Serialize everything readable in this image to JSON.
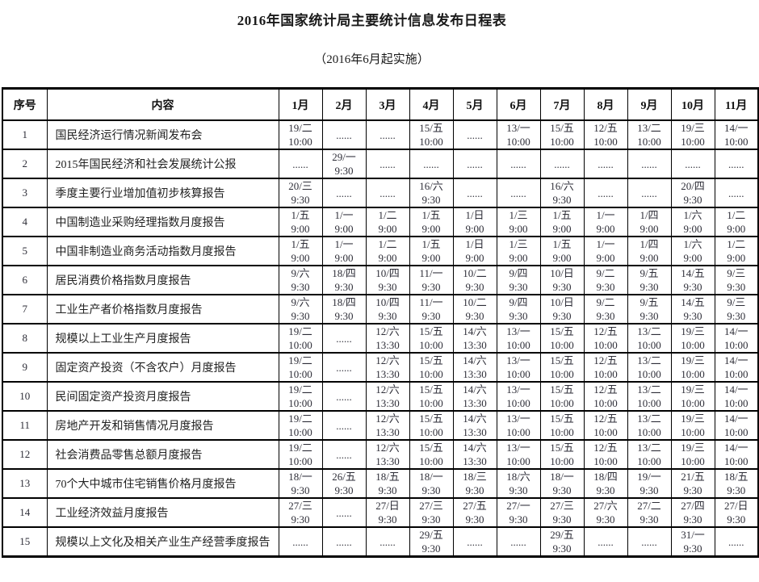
{
  "title": "2016年国家统计局主要统计信息发布日程表",
  "subtitle": "（2016年6月起实施）",
  "colors": {
    "background": "#ffffff",
    "border": "#000000",
    "title_text": "#1a1a1a",
    "cell_text": "#2e2e38"
  },
  "table": {
    "headers": [
      "序号",
      "内容",
      "1月",
      "2月",
      "3月",
      "4月",
      "5月",
      "6月",
      "7月",
      "8月",
      "9月",
      "10月",
      "11月"
    ],
    "rows": [
      {
        "no": "1",
        "content": "国民经济运行情况新闻发布会",
        "cells": [
          [
            "19/二",
            "10:00"
          ],
          [
            "......"
          ],
          [
            "......"
          ],
          [
            "15/五",
            "10:00"
          ],
          [
            "......"
          ],
          [
            "13/一",
            "10:00"
          ],
          [
            "15/五",
            "10:00"
          ],
          [
            "12/五",
            "10:00"
          ],
          [
            "13/二",
            "10:00"
          ],
          [
            "19/三",
            "10:00"
          ],
          [
            "14/一",
            "10:00"
          ]
        ]
      },
      {
        "no": "2",
        "content": "2015年国民经济和社会发展统计公报",
        "cells": [
          [
            "......"
          ],
          [
            "29/一",
            "9:30"
          ],
          [
            "......"
          ],
          [
            "......"
          ],
          [
            "......"
          ],
          [
            "......"
          ],
          [
            "......"
          ],
          [
            "......"
          ],
          [
            "......"
          ],
          [
            "......"
          ],
          [
            "......"
          ]
        ]
      },
      {
        "no": "3",
        "content": "季度主要行业增加值初步核算报告",
        "cells": [
          [
            "20/三",
            "9:30"
          ],
          [
            "......"
          ],
          [
            "......"
          ],
          [
            "16/六",
            "9:30"
          ],
          [
            "......"
          ],
          [
            "......"
          ],
          [
            "16/六",
            "9:30"
          ],
          [
            "......"
          ],
          [
            "......"
          ],
          [
            "20/四",
            "9:30"
          ],
          [
            "......"
          ]
        ]
      },
      {
        "no": "4",
        "content": "中国制造业采购经理指数月度报告",
        "cells": [
          [
            "1/五",
            "9:00"
          ],
          [
            "1/一",
            "9:00"
          ],
          [
            "1/二",
            "9:00"
          ],
          [
            "1/五",
            "9:00"
          ],
          [
            "1/日",
            "9:00"
          ],
          [
            "1/三",
            "9:00"
          ],
          [
            "1/五",
            "9:00"
          ],
          [
            "1/一",
            "9:00"
          ],
          [
            "1/四",
            "9:00"
          ],
          [
            "1/六",
            "9:00"
          ],
          [
            "1/二",
            "9:00"
          ]
        ]
      },
      {
        "no": "5",
        "content": "中国非制造业商务活动指数月度报告",
        "cells": [
          [
            "1/五",
            "9:00"
          ],
          [
            "1/一",
            "9:00"
          ],
          [
            "1/二",
            "9:00"
          ],
          [
            "1/五",
            "9:00"
          ],
          [
            "1/日",
            "9:00"
          ],
          [
            "1/三",
            "9:00"
          ],
          [
            "1/五",
            "9:00"
          ],
          [
            "1/一",
            "9:00"
          ],
          [
            "1/四",
            "9:00"
          ],
          [
            "1/六",
            "9:00"
          ],
          [
            "1/二",
            "9:00"
          ]
        ]
      },
      {
        "no": "6",
        "content": "居民消费价格指数月度报告",
        "cells": [
          [
            "9/六",
            "9:30"
          ],
          [
            "18/四",
            "9:30"
          ],
          [
            "10/四",
            "9:30"
          ],
          [
            "11/一",
            "9:30"
          ],
          [
            "10/二",
            "9:30"
          ],
          [
            "9/四",
            "9:30"
          ],
          [
            "10/日",
            "9:30"
          ],
          [
            "9/二",
            "9:30"
          ],
          [
            "9/五",
            "9:30"
          ],
          [
            "14/五",
            "9:30"
          ],
          [
            "9/三",
            "9:30"
          ]
        ]
      },
      {
        "no": "7",
        "content": "工业生产者价格指数月度报告",
        "cells": [
          [
            "9/六",
            "9:30"
          ],
          [
            "18/四",
            "9:30"
          ],
          [
            "10/四",
            "9:30"
          ],
          [
            "11/一",
            "9:30"
          ],
          [
            "10/二",
            "9:30"
          ],
          [
            "9/四",
            "9:30"
          ],
          [
            "10/日",
            "9:30"
          ],
          [
            "9/二",
            "9:30"
          ],
          [
            "9/五",
            "9:30"
          ],
          [
            "14/五",
            "9:30"
          ],
          [
            "9/三",
            "9:30"
          ]
        ]
      },
      {
        "no": "8",
        "content": "规模以上工业生产月度报告",
        "cells": [
          [
            "19/二",
            "10:00"
          ],
          [
            "......"
          ],
          [
            "12/六",
            "13:30"
          ],
          [
            "15/五",
            "10:00"
          ],
          [
            "14/六",
            "13:30"
          ],
          [
            "13/一",
            "10:00"
          ],
          [
            "15/五",
            "10:00"
          ],
          [
            "12/五",
            "10:00"
          ],
          [
            "13/二",
            "10:00"
          ],
          [
            "19/三",
            "10:00"
          ],
          [
            "14/一",
            "10:00"
          ]
        ]
      },
      {
        "no": "9",
        "content": "固定资产投资（不含农户）月度报告",
        "cells": [
          [
            "19/二",
            "10:00"
          ],
          [
            "......"
          ],
          [
            "12/六",
            "13:30"
          ],
          [
            "15/五",
            "10:00"
          ],
          [
            "14/六",
            "13:30"
          ],
          [
            "13/一",
            "10:00"
          ],
          [
            "15/五",
            "10:00"
          ],
          [
            "12/五",
            "10:00"
          ],
          [
            "13/二",
            "10:00"
          ],
          [
            "19/三",
            "10:00"
          ],
          [
            "14/一",
            "10:00"
          ]
        ]
      },
      {
        "no": "10",
        "content": "民间固定资产投资月度报告",
        "cells": [
          [
            "19/二",
            "10:00"
          ],
          [
            "......"
          ],
          [
            "12/六",
            "13:30"
          ],
          [
            "15/五",
            "10:00"
          ],
          [
            "14/六",
            "13:30"
          ],
          [
            "13/一",
            "10:00"
          ],
          [
            "15/五",
            "10:00"
          ],
          [
            "12/五",
            "10:00"
          ],
          [
            "13/二",
            "10:00"
          ],
          [
            "19/三",
            "10:00"
          ],
          [
            "14/一",
            "10:00"
          ]
        ]
      },
      {
        "no": "11",
        "content": "房地产开发和销售情况月度报告",
        "cells": [
          [
            "19/二",
            "10:00"
          ],
          [
            "......"
          ],
          [
            "12/六",
            "13:30"
          ],
          [
            "15/五",
            "10:00"
          ],
          [
            "14/六",
            "13:30"
          ],
          [
            "13/一",
            "10:00"
          ],
          [
            "15/五",
            "10:00"
          ],
          [
            "12/五",
            "10:00"
          ],
          [
            "13/二",
            "10:00"
          ],
          [
            "19/三",
            "10:00"
          ],
          [
            "14/一",
            "10:00"
          ]
        ]
      },
      {
        "no": "12",
        "content": "社会消费品零售总额月度报告",
        "cells": [
          [
            "19/二",
            "10:00"
          ],
          [
            "......"
          ],
          [
            "12/六",
            "13:30"
          ],
          [
            "15/五",
            "10:00"
          ],
          [
            "14/六",
            "13:30"
          ],
          [
            "13/一",
            "10:00"
          ],
          [
            "15/五",
            "10:00"
          ],
          [
            "12/五",
            "10:00"
          ],
          [
            "13/二",
            "10:00"
          ],
          [
            "19/三",
            "10:00"
          ],
          [
            "14/一",
            "10:00"
          ]
        ]
      },
      {
        "no": "13",
        "content": "70个大中城市住宅销售价格月度报告",
        "cells": [
          [
            "18/一",
            "9:30"
          ],
          [
            "26/五",
            "9:30"
          ],
          [
            "18/五",
            "9:30"
          ],
          [
            "18/一",
            "9:30"
          ],
          [
            "18/三",
            "9:30"
          ],
          [
            "18/六",
            "9:30"
          ],
          [
            "18/一",
            "9:30"
          ],
          [
            "18/四",
            "9:30"
          ],
          [
            "19/一",
            "9:30"
          ],
          [
            "21/五",
            "9:30"
          ],
          [
            "18/五",
            "9:30"
          ]
        ]
      },
      {
        "no": "14",
        "content": "工业经济效益月度报告",
        "cells": [
          [
            "27/三",
            "9:30"
          ],
          [
            "......"
          ],
          [
            "27/日",
            "9:30"
          ],
          [
            "27/三",
            "9:30"
          ],
          [
            "27/五",
            "9:30"
          ],
          [
            "27/一",
            "9:30"
          ],
          [
            "27/三",
            "9:30"
          ],
          [
            "27/六",
            "9:30"
          ],
          [
            "27/二",
            "9:30"
          ],
          [
            "27/四",
            "9:30"
          ],
          [
            "27/日",
            "9:30"
          ]
        ]
      },
      {
        "no": "15",
        "content": "规模以上文化及相关产业生产经营季度报告",
        "cells": [
          [
            "......"
          ],
          [
            "......"
          ],
          [
            "......"
          ],
          [
            "29/五",
            "9:30"
          ],
          [
            "......"
          ],
          [
            "......"
          ],
          [
            "29/五",
            "9:30"
          ],
          [
            "......"
          ],
          [
            "......"
          ],
          [
            "31/一",
            "9:30"
          ],
          [
            "......"
          ]
        ]
      }
    ]
  }
}
